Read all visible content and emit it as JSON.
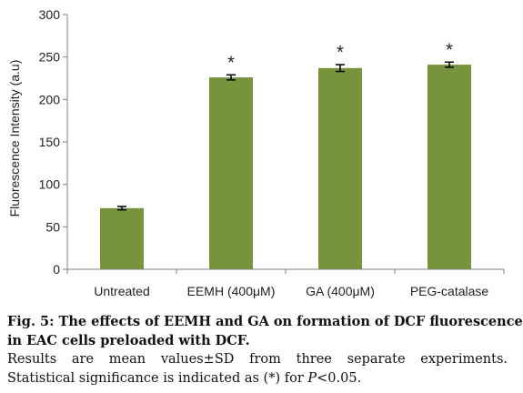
{
  "chart_data": {
    "type": "bar",
    "categories": [
      "Untreated",
      "EEMH (400μM)",
      "GA (400μM)",
      "PEG-catalase"
    ],
    "values": [
      72,
      226,
      237,
      241
    ],
    "errors": [
      2,
      3,
      4,
      3
    ],
    "significant": [
      false,
      true,
      true,
      true
    ],
    "significance_marker": "*",
    "xlabel": "",
    "ylabel": "Fluorescence Intensity (a.u)",
    "ylim": [
      0,
      300
    ],
    "yticks": [
      "0",
      "50",
      "100",
      "150",
      "200",
      "250",
      "300"
    ],
    "bar_color": "#77933c",
    "grid": false,
    "legend": "none"
  },
  "caption": {
    "line1": "Fig. 5: The effects of EEMH and GA on formation of DCF fluorescence",
    "line2": "in EAC cells preloaded with DCF.",
    "line3": "Results are mean values±SD from three separate experiments.",
    "line4_pre": "Statistical significance is indicated as (*) for ",
    "line4_p": "P",
    "line4_post": "<0.05."
  }
}
